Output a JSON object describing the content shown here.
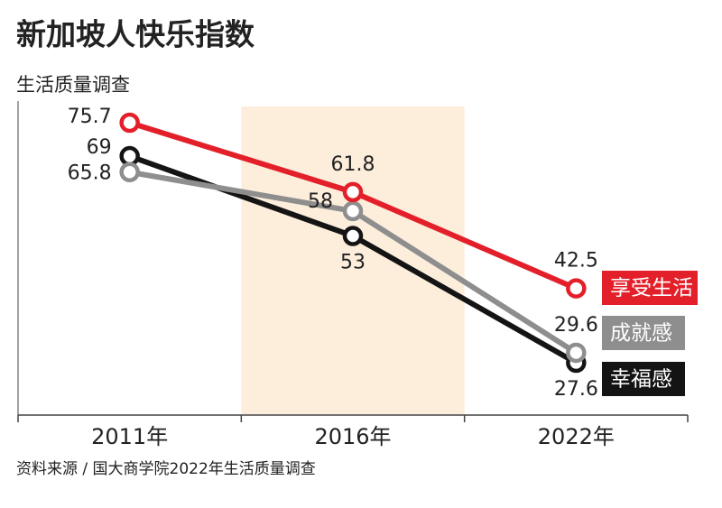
{
  "chart_data": {
    "type": "line",
    "title": "新加坡人快乐指数",
    "subtitle": "生活质量调查",
    "source": "资料来源 / 国大商学院2022年生活质量调查",
    "categories": [
      "2011年",
      "2016年",
      "2022年"
    ],
    "highlight_category": 1,
    "series": [
      {
        "name": "享受生活",
        "color": "#e3202a",
        "values": [
          75.7,
          61.8,
          42.5
        ]
      },
      {
        "name": "成就感",
        "color": "#8e8e8e",
        "values": [
          65.8,
          58,
          29.6
        ]
      },
      {
        "name": "幸福感",
        "color": "#141414",
        "values": [
          69,
          53,
          27.6
        ]
      }
    ]
  }
}
